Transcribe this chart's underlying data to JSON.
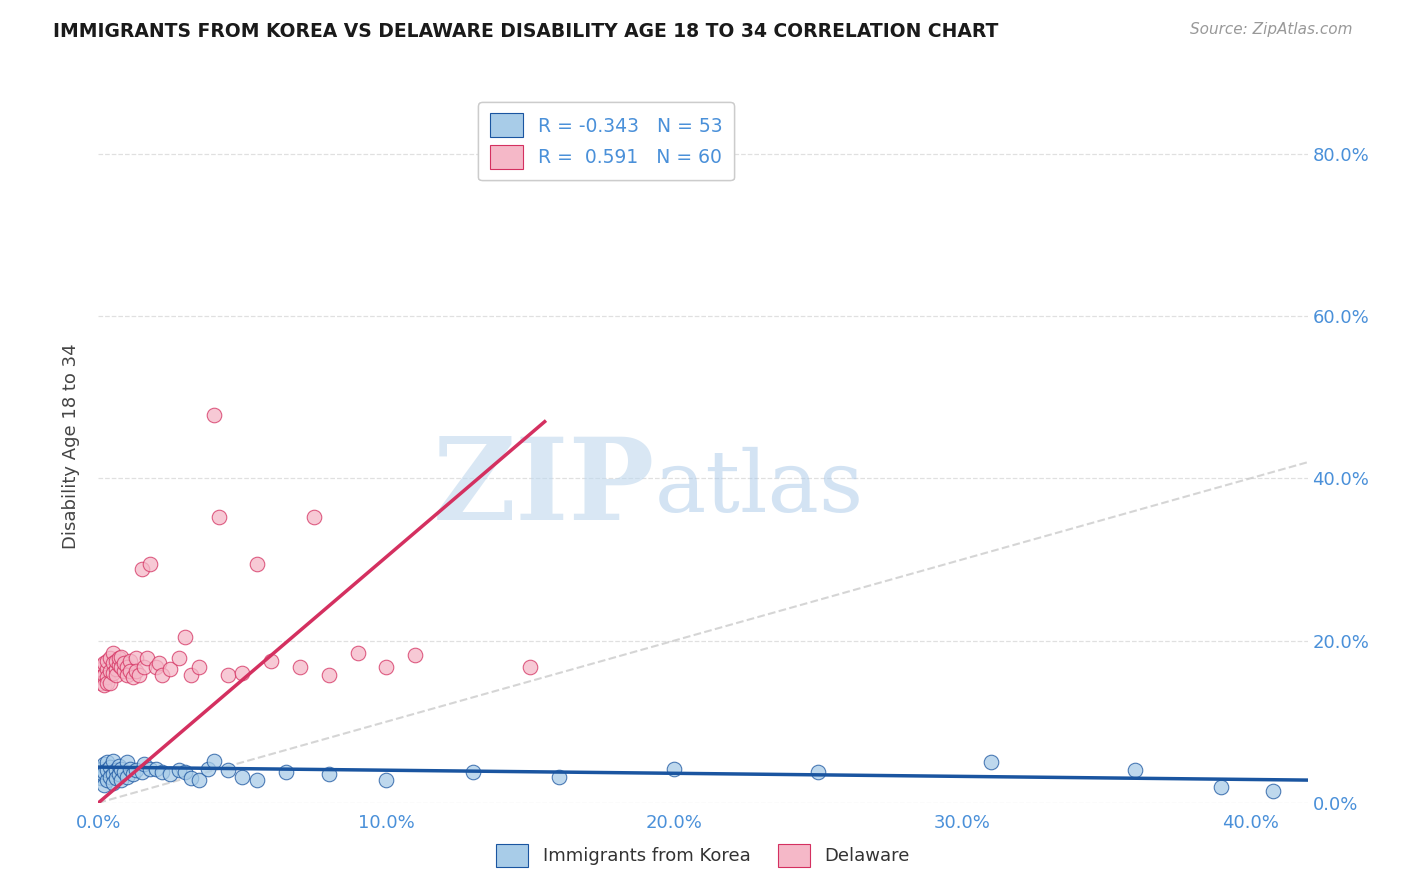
{
  "title": "IMMIGRANTS FROM KOREA VS DELAWARE DISABILITY AGE 18 TO 34 CORRELATION CHART",
  "source": "Source: ZipAtlas.com",
  "ylabel": "Disability Age 18 to 34",
  "legend_label_blue": "Immigrants from Korea",
  "legend_label_pink": "Delaware",
  "r_blue": -0.343,
  "n_blue": 53,
  "r_pink": 0.591,
  "n_pink": 60,
  "color_blue": "#a8cce8",
  "color_pink": "#f5b8c8",
  "color_blue_dark": "#1a55a0",
  "color_pink_dark": "#d43060",
  "color_diag": "#c8c8c8",
  "color_axis_labels": "#4a90d9",
  "xlim": [
    0.0,
    0.42
  ],
  "ylim": [
    0.0,
    0.88
  ],
  "xticks": [
    0.0,
    0.1,
    0.2,
    0.3,
    0.4
  ],
  "yticks": [
    0.0,
    0.2,
    0.4,
    0.6,
    0.8
  ],
  "blue_x": [
    0.0005,
    0.001,
    0.001,
    0.0015,
    0.002,
    0.002,
    0.002,
    0.003,
    0.003,
    0.003,
    0.004,
    0.004,
    0.005,
    0.005,
    0.005,
    0.006,
    0.006,
    0.007,
    0.007,
    0.008,
    0.008,
    0.009,
    0.01,
    0.01,
    0.011,
    0.012,
    0.013,
    0.015,
    0.016,
    0.018,
    0.02,
    0.022,
    0.025,
    0.028,
    0.03,
    0.032,
    0.035,
    0.038,
    0.04,
    0.045,
    0.05,
    0.055,
    0.065,
    0.08,
    0.1,
    0.13,
    0.16,
    0.2,
    0.25,
    0.31,
    0.36,
    0.39,
    0.408
  ],
  "blue_y": [
    0.038,
    0.042,
    0.03,
    0.035,
    0.048,
    0.022,
    0.038,
    0.05,
    0.028,
    0.04,
    0.044,
    0.032,
    0.052,
    0.036,
    0.025,
    0.04,
    0.03,
    0.045,
    0.035,
    0.042,
    0.028,
    0.038,
    0.05,
    0.032,
    0.042,
    0.035,
    0.04,
    0.038,
    0.048,
    0.042,
    0.042,
    0.038,
    0.035,
    0.04,
    0.038,
    0.03,
    0.028,
    0.042,
    0.052,
    0.04,
    0.032,
    0.028,
    0.038,
    0.035,
    0.028,
    0.038,
    0.032,
    0.042,
    0.038,
    0.05,
    0.04,
    0.02,
    0.015
  ],
  "pink_x": [
    0.0005,
    0.001,
    0.001,
    0.001,
    0.0015,
    0.002,
    0.002,
    0.002,
    0.003,
    0.003,
    0.003,
    0.003,
    0.004,
    0.004,
    0.004,
    0.005,
    0.005,
    0.005,
    0.006,
    0.006,
    0.006,
    0.007,
    0.007,
    0.008,
    0.008,
    0.009,
    0.009,
    0.01,
    0.01,
    0.011,
    0.011,
    0.012,
    0.013,
    0.013,
    0.014,
    0.015,
    0.016,
    0.017,
    0.018,
    0.02,
    0.021,
    0.022,
    0.025,
    0.028,
    0.03,
    0.032,
    0.035,
    0.04,
    0.042,
    0.045,
    0.05,
    0.055,
    0.06,
    0.07,
    0.075,
    0.08,
    0.09,
    0.1,
    0.11,
    0.15
  ],
  "pink_y": [
    0.16,
    0.165,
    0.155,
    0.148,
    0.17,
    0.158,
    0.172,
    0.145,
    0.165,
    0.175,
    0.155,
    0.148,
    0.178,
    0.162,
    0.148,
    0.185,
    0.172,
    0.16,
    0.165,
    0.175,
    0.158,
    0.17,
    0.178,
    0.168,
    0.18,
    0.162,
    0.172,
    0.168,
    0.158,
    0.175,
    0.162,
    0.155,
    0.178,
    0.162,
    0.158,
    0.288,
    0.168,
    0.178,
    0.295,
    0.168,
    0.172,
    0.158,
    0.165,
    0.178,
    0.205,
    0.158,
    0.168,
    0.478,
    0.352,
    0.158,
    0.16,
    0.295,
    0.175,
    0.168,
    0.352,
    0.158,
    0.185,
    0.168,
    0.182,
    0.168
  ],
  "pink_line_x0": 0.0,
  "pink_line_y0": 0.0,
  "pink_line_x1": 0.155,
  "pink_line_y1": 0.47,
  "blue_line_x0": 0.0,
  "blue_line_y0": 0.044,
  "blue_line_x1": 0.42,
  "blue_line_y1": 0.028,
  "watermark_zip": "ZIP",
  "watermark_atlas": "atlas",
  "background_color": "#ffffff",
  "grid_color": "#e0e0e0"
}
